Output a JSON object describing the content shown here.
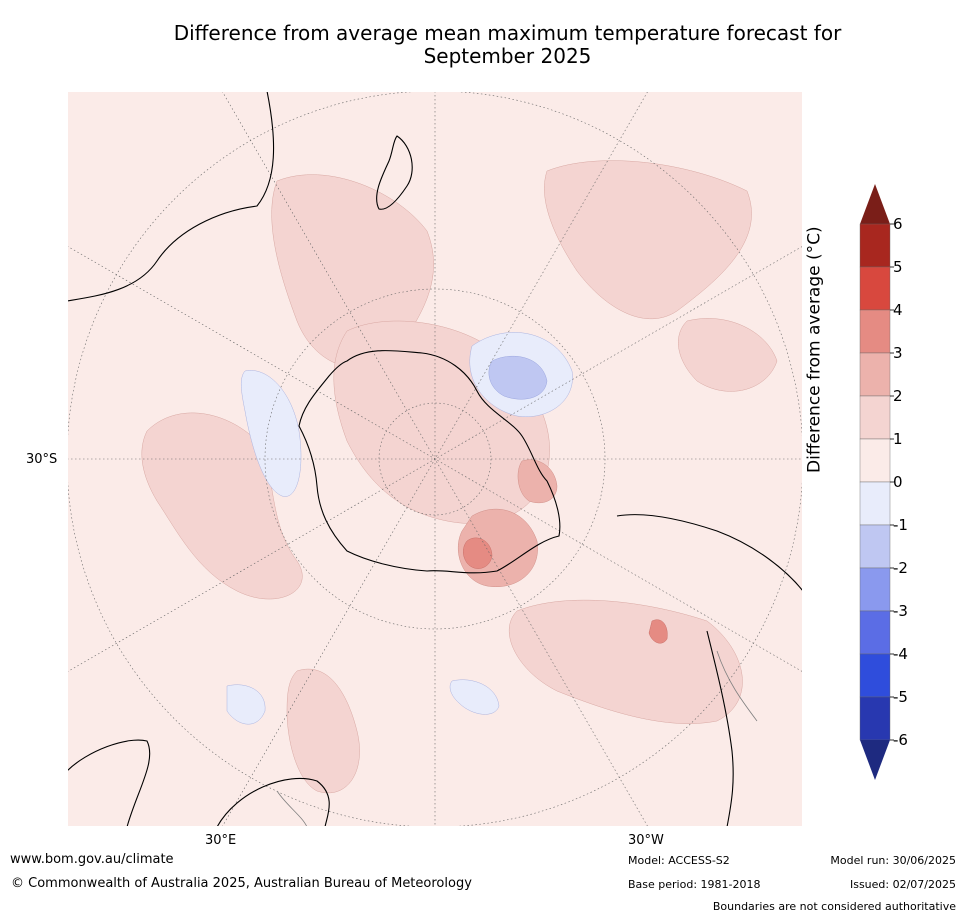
{
  "title": {
    "line1": "Difference from average mean maximum temperature forecast for",
    "line2": "September 2025"
  },
  "map": {
    "projection": "south-polar-stereographic",
    "grid_labels": {
      "lat": "30°S",
      "lon_left": "30°E",
      "lon_right": "30°W"
    },
    "colors": {
      "background": "#fbebe8",
      "light_warm": "#f4d4d1",
      "medium_warm": "#ecb2ac",
      "warm": "#e58b83",
      "light_cool": "#e8ecfb",
      "cool": "#bfc7f2",
      "coast": "#000000",
      "border": "#808080"
    }
  },
  "colorbar": {
    "title": "Difference from average (°C)",
    "ticks": [
      "6",
      "5",
      "4",
      "3",
      "2",
      "1",
      "0",
      "-1",
      "-2",
      "-3",
      "-4",
      "-5",
      "-6"
    ],
    "colors_top_to_bottom": [
      "#a8271f",
      "#d8483e",
      "#e58b83",
      "#ecb2ac",
      "#f4d4d1",
      "#fbebe8",
      "#e8ecfb",
      "#bfc7f2",
      "#8a99ee",
      "#5b6de5",
      "#2f4ddc",
      "#2838b0"
    ],
    "over_color": "#7a1e18",
    "under_color": "#1e2a80"
  },
  "footer": {
    "url": "www.bom.gov.au/climate",
    "copyright": "© Commonwealth of Australia 2025, Australian Bureau of Meteorology",
    "model": "Model: ACCESS-S2",
    "base_period": "Base period: 1981-2018",
    "model_run": "Model run: 30/06/2025",
    "issued": "Issued: 02/07/2025",
    "disclaimer": "Boundaries are not considered authoritative"
  }
}
